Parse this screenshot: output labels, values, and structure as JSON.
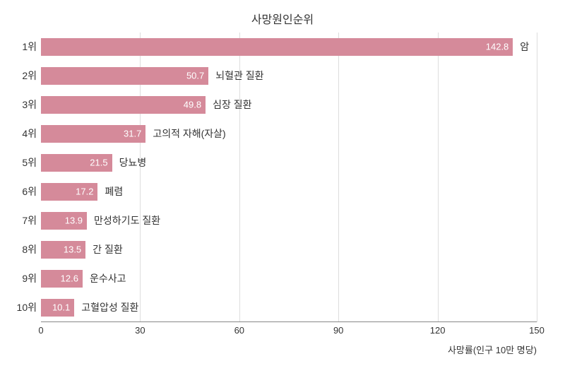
{
  "chart": {
    "type": "bar-horizontal",
    "title": "사망원인순위",
    "x_axis": {
      "min": 0,
      "max": 150,
      "ticks": [
        0,
        30,
        60,
        90,
        120,
        150
      ],
      "title": "사망률(인구 10만 명당)",
      "label_fontsize": 13,
      "tick_fontsize": 13,
      "line_color": "#888888",
      "grid_color": "#dddddd"
    },
    "bar_color": "#d58a9a",
    "value_text_color": "#ffffff",
    "label_text_color": "#333333",
    "title_color": "#333333",
    "background_color": "#ffffff",
    "title_fontsize": 16,
    "ylabel_fontsize": 14,
    "category_label_fontsize": 14,
    "value_fontsize": 13,
    "bar_height_ratio": 0.62,
    "data": [
      {
        "rank": "1위",
        "value": 142.8,
        "label": "암"
      },
      {
        "rank": "2위",
        "value": 50.7,
        "label": "뇌혈관 질환"
      },
      {
        "rank": "3위",
        "value": 49.8,
        "label": "심장 질환"
      },
      {
        "rank": "4위",
        "value": 31.7,
        "label": "고의적 자해(자살)"
      },
      {
        "rank": "5위",
        "value": 21.5,
        "label": "당뇨병"
      },
      {
        "rank": "6위",
        "value": 17.2,
        "label": "폐렴"
      },
      {
        "rank": "7위",
        "value": 13.9,
        "label": "만성하기도 질환"
      },
      {
        "rank": "8위",
        "value": 13.5,
        "label": "간 질환"
      },
      {
        "rank": "9위",
        "value": 12.6,
        "label": "운수사고"
      },
      {
        "rank": "10위",
        "value": 10.1,
        "label": "고혈압성 질환"
      }
    ]
  }
}
